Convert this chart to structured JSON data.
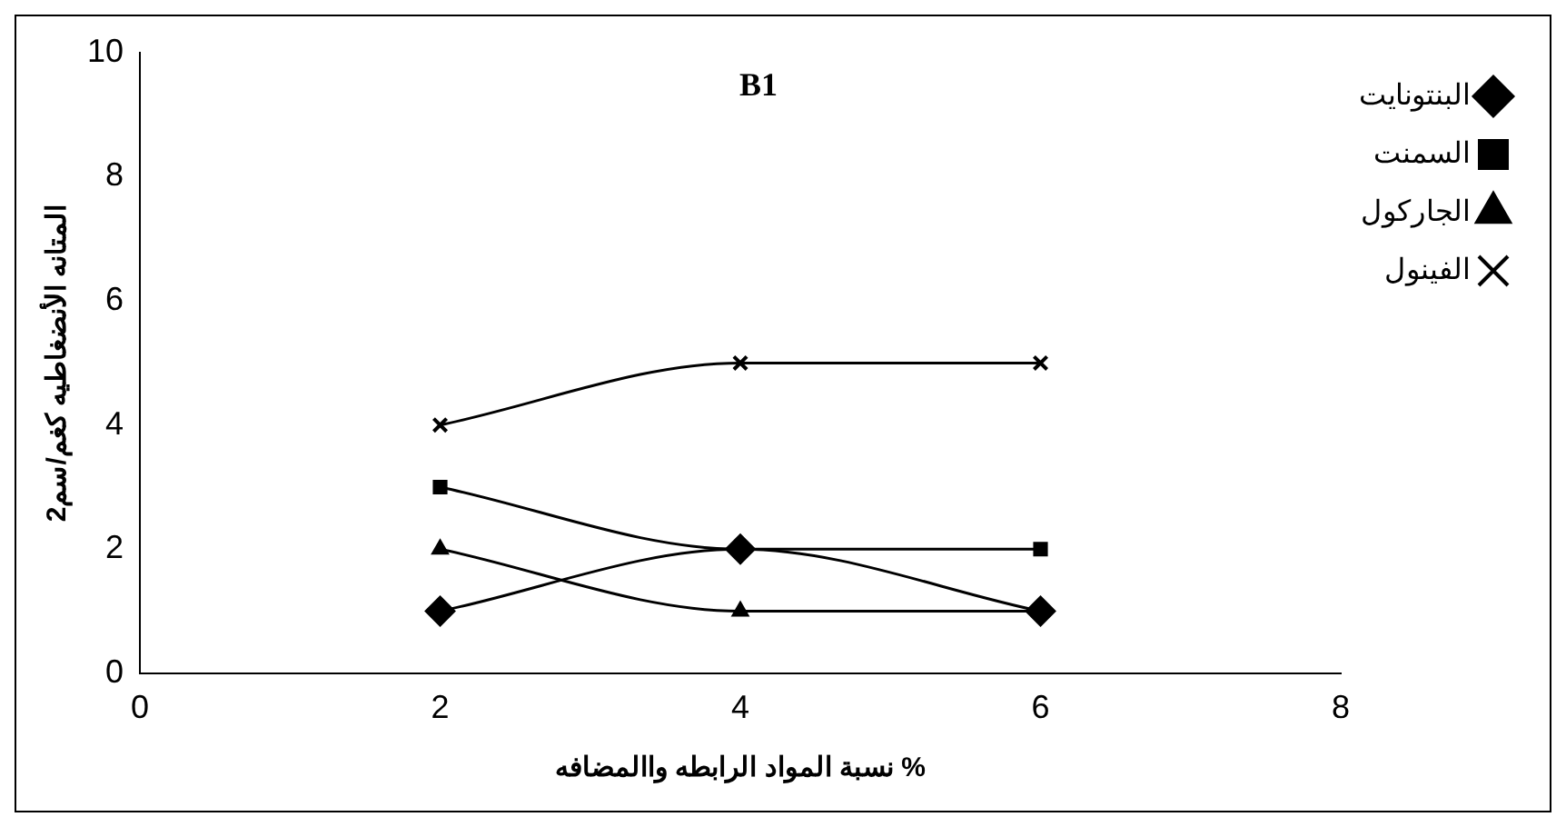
{
  "chart_data": {
    "type": "line",
    "title": "B1",
    "xlabel": "نسبة المواد الرابطه واالمضافه %",
    "ylabel": "المتانه الأنضغاطيه كغم/سم2",
    "x": [
      2,
      4,
      6
    ],
    "xlim": [
      0,
      8
    ],
    "xticks": [
      0,
      2,
      4,
      6,
      8
    ],
    "ylim": [
      0,
      10
    ],
    "yticks": [
      0,
      2,
      4,
      6,
      8,
      10
    ],
    "grid": false,
    "legend": "right",
    "series": [
      {
        "name": "البنتونايت",
        "color": "#000000",
        "marker": "diamond",
        "values": [
          1,
          2,
          1
        ]
      },
      {
        "name": "السمنت",
        "color": "#000000",
        "marker": "square",
        "values": [
          3,
          2,
          2
        ]
      },
      {
        "name": "الجاركول",
        "color": "#000000",
        "marker": "triangle",
        "values": [
          2,
          1,
          1
        ]
      },
      {
        "name": "الفينول",
        "color": "#000000",
        "marker": "cross",
        "values": [
          4,
          5,
          5
        ]
      }
    ]
  }
}
